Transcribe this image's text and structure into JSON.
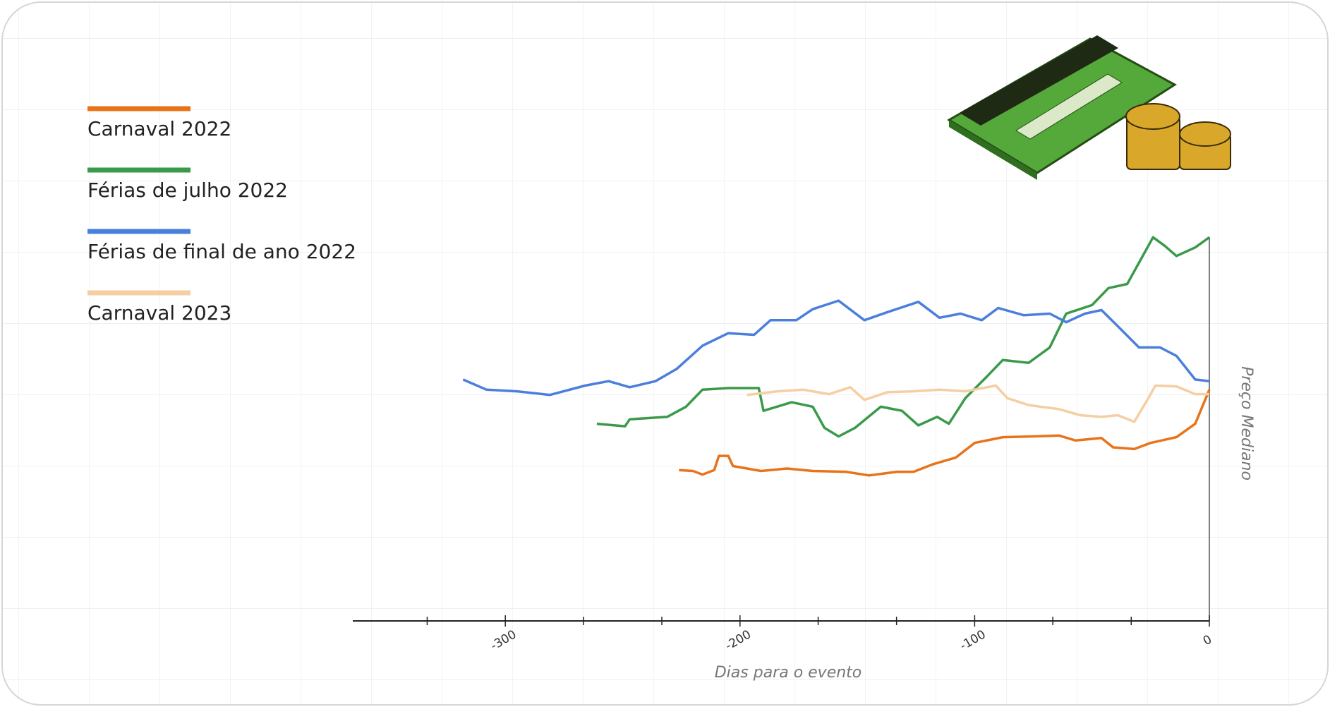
{
  "chart_data": {
    "type": "line",
    "xlabel": "Dias para o evento",
    "ylabel": "Preço Mediano",
    "xlim": [
      -365,
      0
    ],
    "ylim": [
      0,
      100
    ],
    "xticks": [
      -300,
      -200,
      -100,
      0
    ],
    "minor_xticks": [
      -333.3,
      -266.7,
      -233.3,
      -166.7,
      -133.3,
      -66.7,
      -33.3
    ],
    "series": [
      {
        "name": "Carnaval 2022",
        "color": "#e8731a",
        "x": [
          -226,
          -220,
          -216,
          -211,
          -209,
          -205,
          -203,
          -191,
          -180,
          -169,
          -155,
          -145,
          -133,
          -126,
          -118,
          -108,
          -100,
          -88,
          -75,
          -64,
          -57,
          -46,
          -41,
          -32,
          -25,
          -14,
          -6,
          0
        ],
        "values": [
          37.1,
          36.9,
          36,
          37.1,
          40.6,
          40.6,
          38.1,
          36.9,
          37.5,
          36.9,
          36.7,
          35.8,
          36.7,
          36.7,
          38.5,
          40.2,
          43.8,
          45.2,
          45.4,
          45.6,
          44.4,
          45,
          42.7,
          42.3,
          43.8,
          45.2,
          48.5,
          56.9
        ]
      },
      {
        "name": "Férias de julho 2022",
        "color": "#3a9a4a",
        "x": [
          -261,
          -249,
          -247,
          -231,
          -223,
          -216,
          -205,
          -192,
          -190,
          -178,
          -169,
          -164,
          -158,
          -151,
          -140,
          -131,
          -124,
          -116,
          -111,
          -104,
          -95,
          -88,
          -77,
          -68,
          -61,
          -50,
          -43,
          -35,
          -30,
          -24,
          -19,
          -14,
          -6,
          0
        ],
        "values": [
          48.5,
          47.9,
          49.6,
          50.2,
          52.7,
          56.9,
          57.3,
          57.3,
          51.7,
          53.8,
          52.7,
          47.5,
          45.4,
          47.5,
          52.7,
          51.7,
          48.1,
          50.2,
          48.5,
          54.8,
          60,
          64.2,
          63.5,
          67.3,
          75.6,
          77.7,
          81.9,
          82.9,
          88.1,
          94.4,
          92.3,
          89.8,
          91.9,
          94.4
        ]
      },
      {
        "name": "Férias de final de ano 2022",
        "color": "#4a7fdc",
        "x": [
          -318,
          -308,
          -295,
          -281,
          -266,
          -256,
          -247,
          -236,
          -227,
          -216,
          -205,
          -194,
          -187,
          -176,
          -169,
          -158,
          -147,
          -137,
          -124,
          -115,
          -106,
          -97,
          -90,
          -79,
          -68,
          -61,
          -53,
          -46,
          -39,
          -30,
          -21,
          -14,
          -6,
          0
        ],
        "values": [
          59.4,
          56.9,
          56.5,
          55.6,
          57.9,
          59,
          57.5,
          59,
          62,
          67.7,
          70.8,
          70.4,
          74,
          74,
          76.7,
          78.8,
          74,
          76,
          78.5,
          74.6,
          75.6,
          74,
          77,
          75.2,
          75.6,
          73.5,
          75.6,
          76.5,
          72.5,
          67.3,
          67.3,
          65.2,
          59.4,
          59
        ]
      },
      {
        "name": "Carnaval 2023",
        "color": "#f5cfa3",
        "x": [
          -197,
          -184,
          -173,
          -162,
          -153,
          -147,
          -137,
          -126,
          -115,
          -104,
          -91,
          -86,
          -77,
          -64,
          -55,
          -46,
          -39,
          -32,
          -26,
          -23,
          -14,
          -6,
          0
        ],
        "values": [
          55.6,
          56.5,
          56.9,
          55.8,
          57.5,
          54.4,
          56.3,
          56.5,
          56.9,
          56.5,
          57.9,
          54.8,
          53.1,
          52.1,
          50.6,
          50.2,
          50.6,
          49,
          54.8,
          57.9,
          57.7,
          55.8,
          55.8
        ]
      }
    ]
  }
}
